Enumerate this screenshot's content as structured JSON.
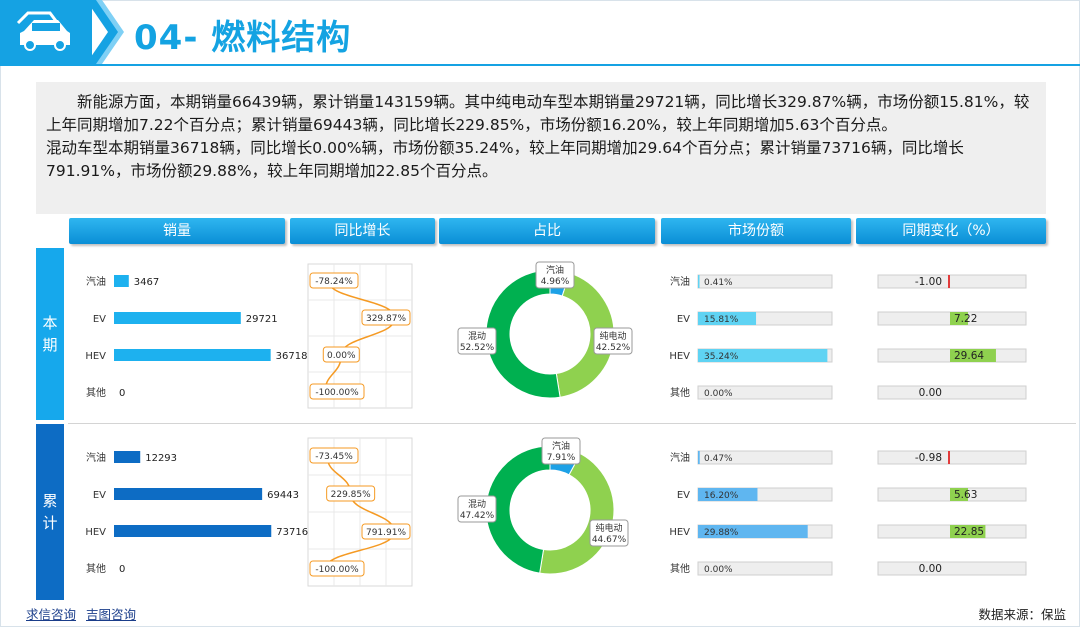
{
  "header": {
    "title": "04- 燃料结构",
    "logo_icon": "car-icon"
  },
  "summary": {
    "para1": "新能源方面，本期销量66439辆，累计销量143159辆。其中纯电动车型本期销量29721辆，同比增长329.87%辆，市场份额15.81%，较上年同期增加7.22个百分点；累计销量69443辆，同比增长229.85%，市场份额16.20%，较上年同期增加5.63个百分点。",
    "para2": "混动车型本期销量36718辆，同比增长0.00%辆，市场份额35.24%，较上年同期增加29.64个百分点；累计销量73716辆，同比增长791.91%，市场份额29.88%，较上年同期增加22.85个百分点。"
  },
  "columns": [
    "销量",
    "同比增长",
    "占比",
    "市场份额",
    "同期变化（%）"
  ],
  "rows": {
    "current": "本期",
    "cumulative": "累计"
  },
  "colors": {
    "accent": "#15a2e3",
    "bar_current": "#1db1ef",
    "bar_cumulative": "#0d6cc4",
    "donut_light": "#8fd14f",
    "donut_dark": "#00b050",
    "donut_blue": "#1da1e6",
    "line_orange": "#f59a23",
    "share_current": "#5fd3f3",
    "share_cumulative": "#5fb6f0",
    "change_green": "#8fd14f",
    "change_red": "#e23b3b"
  },
  "chart_data": [
    {
      "type": "bar",
      "title": "本期销量",
      "categories": [
        "汽油",
        "EV",
        "HEV",
        "其他"
      ],
      "values": [
        3467,
        29721,
        36718,
        0
      ],
      "value_labels": [
        "3467",
        "29721",
        "36718",
        "0"
      ]
    },
    {
      "type": "line",
      "title": "本期同比增长",
      "categories": [
        "汽油",
        "EV",
        "HEV",
        "其他"
      ],
      "values": [
        -78.24,
        329.87,
        0.0,
        -100.0
      ],
      "value_labels": [
        "-78.24%",
        "329.87%",
        "0.00%",
        "-100.00%"
      ]
    },
    {
      "type": "pie",
      "title": "本期占比",
      "categories": [
        "汽油",
        "纯电动",
        "混动"
      ],
      "values": [
        4.96,
        42.52,
        52.52
      ],
      "value_labels": [
        "4.96%",
        "42.52%",
        "52.52%"
      ]
    },
    {
      "type": "bar",
      "title": "本期市场份额",
      "categories": [
        "汽油",
        "EV",
        "HEV",
        "其他"
      ],
      "values": [
        0.41,
        15.81,
        35.24,
        0.0
      ],
      "value_labels": [
        "0.41%",
        "15.81%",
        "35.24%",
        "0.00%"
      ]
    },
    {
      "type": "bar",
      "title": "本期同期变化",
      "categories": [
        "汽油",
        "EV",
        "HEV",
        "其他"
      ],
      "values": [
        -1.0,
        7.22,
        29.64,
        0.0
      ],
      "value_labels": [
        "-1.00",
        "7.22",
        "29.64",
        "0.00"
      ]
    },
    {
      "type": "bar",
      "title": "累计销量",
      "categories": [
        "汽油",
        "EV",
        "HEV",
        "其他"
      ],
      "values": [
        12293,
        69443,
        73716,
        0
      ],
      "value_labels": [
        "12293",
        "69443",
        "73716",
        "0"
      ]
    },
    {
      "type": "line",
      "title": "累计同比增长",
      "categories": [
        "汽油",
        "EV",
        "HEV",
        "其他"
      ],
      "values": [
        -73.45,
        229.85,
        791.91,
        -100.0
      ],
      "value_labels": [
        "-73.45%",
        "229.85%",
        "791.91%",
        "-100.00%"
      ]
    },
    {
      "type": "pie",
      "title": "累计占比",
      "categories": [
        "汽油",
        "纯电动",
        "混动"
      ],
      "values": [
        7.91,
        44.67,
        47.42
      ],
      "value_labels": [
        "7.91%",
        "44.67%",
        "47.42%"
      ]
    },
    {
      "type": "bar",
      "title": "累计市场份额",
      "categories": [
        "汽油",
        "EV",
        "HEV",
        "其他"
      ],
      "values": [
        0.47,
        16.2,
        29.88,
        0.0
      ],
      "value_labels": [
        "0.47%",
        "16.20%",
        "29.88%",
        "0.00%"
      ]
    },
    {
      "type": "bar",
      "title": "累计同期变化",
      "categories": [
        "汽油",
        "EV",
        "HEV",
        "其他"
      ],
      "values": [
        -0.98,
        5.63,
        22.85,
        0.0
      ],
      "value_labels": [
        "-0.98",
        "5.63",
        "22.85",
        "0.00"
      ]
    }
  ],
  "footer": {
    "link1": "求信咨询",
    "link2": "吉图咨询",
    "source": "数据来源：保监"
  }
}
